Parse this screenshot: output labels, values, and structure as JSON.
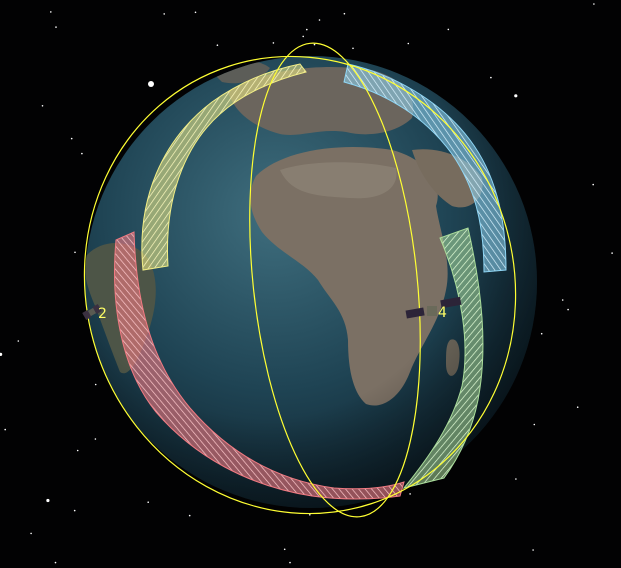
{
  "scene": {
    "background_color": "#020203",
    "orbit_color": "#ffff33",
    "swath_colors": {
      "yellow": "#f2ee86",
      "blue": "#8fd6f5",
      "green": "#a9dc9a",
      "red": "#f07a82"
    }
  },
  "satellites": [
    {
      "id": "sat-2",
      "label": "2",
      "icon": "satellite-icon"
    },
    {
      "id": "sat-4",
      "label": "4",
      "icon": "satellite-icon"
    }
  ]
}
